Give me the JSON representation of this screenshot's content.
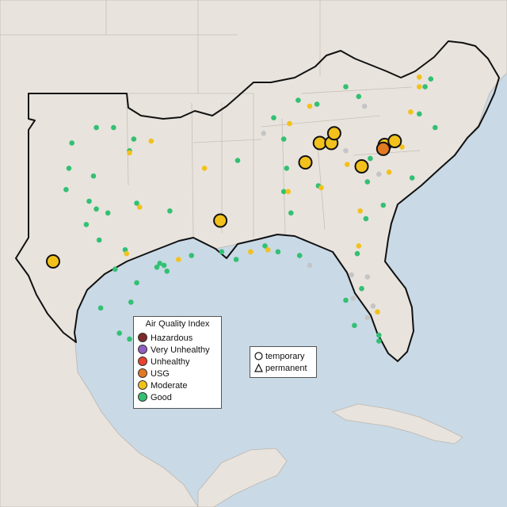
{
  "legend": {
    "title": "Air Quality Index",
    "categories": [
      {
        "label": "Hazardous",
        "color": "#7e2a2a"
      },
      {
        "label": "Very Unhealthy",
        "color": "#8f5fbf"
      },
      {
        "label": "Unhealthy",
        "color": "#e8432e"
      },
      {
        "label": "USG",
        "color": "#e27a24"
      },
      {
        "label": "Moderate",
        "color": "#f2c11b"
      },
      {
        "label": "Good",
        "color": "#33c073"
      }
    ]
  },
  "monitor_types": [
    {
      "label": "temporary",
      "shape": "circle"
    },
    {
      "label": "permanent",
      "shape": "triangle"
    }
  ],
  "colors": {
    "water": "#c9d9e6",
    "land": "#e8e3dd",
    "no_data": "#c5c5c5"
  },
  "monitors": [
    {
      "aqi": "Moderate",
      "lat": 29.9,
      "lon": -102.8,
      "size": "large"
    },
    {
      "aqi": "Moderate",
      "lat": 32.0,
      "lon": -91.2,
      "size": "large"
    },
    {
      "aqi": "Moderate",
      "lat": 35.0,
      "lon": -85.3,
      "size": "large"
    },
    {
      "aqi": "Moderate",
      "lat": 36.0,
      "lon": -84.3,
      "size": "large"
    },
    {
      "aqi": "Moderate",
      "lat": 36.0,
      "lon": -83.5,
      "size": "large"
    },
    {
      "aqi": "Moderate",
      "lat": 36.5,
      "lon": -83.3,
      "size": "large"
    },
    {
      "aqi": "Moderate",
      "lat": 34.8,
      "lon": -81.4,
      "size": "large"
    },
    {
      "aqi": "Moderate",
      "lat": 35.9,
      "lon": -79.8,
      "size": "large"
    },
    {
      "aqi": "Moderate",
      "lat": 36.1,
      "lon": -79.1,
      "size": "large"
    },
    {
      "aqi": "USG",
      "lat": 35.7,
      "lon": -79.9,
      "size": "large"
    },
    {
      "aqi": "Good",
      "lat": 36.0,
      "lon": -101.5
    },
    {
      "aqi": "Good",
      "lat": 36.8,
      "lon": -99.8
    },
    {
      "aqi": "Good",
      "lat": 36.8,
      "lon": -98.6
    },
    {
      "aqi": "Good",
      "lat": 36.2,
      "lon": -97.2
    },
    {
      "aqi": "Good",
      "lat": 35.6,
      "lon": -97.5
    },
    {
      "aqi": "Good",
      "lat": 34.7,
      "lon": -101.7
    },
    {
      "aqi": "Good",
      "lat": 34.3,
      "lon": -100.0
    },
    {
      "aqi": "Good",
      "lat": 33.6,
      "lon": -101.9
    },
    {
      "aqi": "Good",
      "lat": 33.0,
      "lon": -100.3
    },
    {
      "aqi": "Good",
      "lat": 32.6,
      "lon": -99.8
    },
    {
      "aqi": "Good",
      "lat": 32.4,
      "lon": -99.0
    },
    {
      "aqi": "Good",
      "lat": 31.8,
      "lon": -100.5
    },
    {
      "aqi": "Good",
      "lat": 31.0,
      "lon": -99.6
    },
    {
      "aqi": "Good",
      "lat": 30.5,
      "lon": -97.8
    },
    {
      "aqi": "Good",
      "lat": 29.5,
      "lon": -98.5
    },
    {
      "aqi": "Good",
      "lat": 29.8,
      "lon": -95.4
    },
    {
      "aqi": "Good",
      "lat": 29.7,
      "lon": -95.1
    },
    {
      "aqi": "Good",
      "lat": 29.6,
      "lon": -95.6
    },
    {
      "aqi": "Good",
      "lat": 29.4,
      "lon": -94.9
    },
    {
      "aqi": "Good",
      "lat": 28.8,
      "lon": -97.0
    },
    {
      "aqi": "Good",
      "lat": 27.8,
      "lon": -97.4
    },
    {
      "aqi": "Good",
      "lat": 27.5,
      "lon": -99.5
    },
    {
      "aqi": "Good",
      "lat": 26.2,
      "lon": -98.2
    },
    {
      "aqi": "Good",
      "lat": 25.9,
      "lon": -97.5
    },
    {
      "aqi": "Good",
      "lat": 32.9,
      "lon": -97.0
    },
    {
      "aqi": "Good",
      "lat": 32.5,
      "lon": -94.7
    },
    {
      "aqi": "Good",
      "lat": 30.2,
      "lon": -93.2
    },
    {
      "aqi": "Good",
      "lat": 30.4,
      "lon": -91.1
    },
    {
      "aqi": "Good",
      "lat": 30.0,
      "lon": -90.1
    },
    {
      "aqi": "Good",
      "lat": 30.7,
      "lon": -88.1
    },
    {
      "aqi": "Good",
      "lat": 30.4,
      "lon": -87.2
    },
    {
      "aqi": "Good",
      "lat": 30.2,
      "lon": -85.7
    },
    {
      "aqi": "Good",
      "lat": 33.5,
      "lon": -86.8
    },
    {
      "aqi": "Good",
      "lat": 32.4,
      "lon": -86.3
    },
    {
      "aqi": "Good",
      "lat": 34.7,
      "lon": -86.6
    },
    {
      "aqi": "Good",
      "lat": 33.8,
      "lon": -84.4
    },
    {
      "aqi": "Good",
      "lat": 32.1,
      "lon": -81.1
    },
    {
      "aqi": "Good",
      "lat": 32.8,
      "lon": -79.9
    },
    {
      "aqi": "Good",
      "lat": 30.3,
      "lon": -81.7
    },
    {
      "aqi": "Good",
      "lat": 28.5,
      "lon": -81.4
    },
    {
      "aqi": "Good",
      "lat": 27.9,
      "lon": -82.5
    },
    {
      "aqi": "Good",
      "lat": 26.6,
      "lon": -81.9
    },
    {
      "aqi": "Good",
      "lat": 26.1,
      "lon": -80.2
    },
    {
      "aqi": "Good",
      "lat": 25.8,
      "lon": -80.2
    },
    {
      "aqi": "Good",
      "lat": 36.2,
      "lon": -86.8
    },
    {
      "aqi": "Good",
      "lat": 35.1,
      "lon": -90.0
    },
    {
      "aqi": "Good",
      "lat": 37.3,
      "lon": -87.5
    },
    {
      "aqi": "Good",
      "lat": 38.2,
      "lon": -85.8
    },
    {
      "aqi": "Good",
      "lat": 38.0,
      "lon": -84.5
    },
    {
      "aqi": "Good",
      "lat": 38.9,
      "lon": -82.5
    },
    {
      "aqi": "Good",
      "lat": 38.4,
      "lon": -81.6
    },
    {
      "aqi": "Good",
      "lat": 37.5,
      "lon": -77.4
    },
    {
      "aqi": "Good",
      "lat": 36.8,
      "lon": -76.3
    },
    {
      "aqi": "Good",
      "lat": 39.3,
      "lon": -76.6
    },
    {
      "aqi": "Good",
      "lat": 38.9,
      "lon": -77.0
    },
    {
      "aqi": "Good",
      "lat": 35.2,
      "lon": -80.8
    },
    {
      "aqi": "Good",
      "lat": 34.2,
      "lon": -77.9
    },
    {
      "aqi": "Good",
      "lat": 34.0,
      "lon": -81.0
    },
    {
      "aqi": "Moderate",
      "lat": 35.5,
      "lon": -97.5
    },
    {
      "aqi": "Moderate",
      "lat": 36.1,
      "lon": -96.0
    },
    {
      "aqi": "Moderate",
      "lat": 30.3,
      "lon": -97.7
    },
    {
      "aqi": "Moderate",
      "lat": 32.7,
      "lon": -96.8
    },
    {
      "aqi": "Moderate",
      "lat": 30.0,
      "lon": -94.1
    },
    {
      "aqi": "Moderate",
      "lat": 34.7,
      "lon": -92.3
    },
    {
      "aqi": "Moderate",
      "lat": 30.4,
      "lon": -89.1
    },
    {
      "aqi": "Moderate",
      "lat": 30.5,
      "lon": -87.9
    },
    {
      "aqi": "Moderate",
      "lat": 33.5,
      "lon": -86.5
    },
    {
      "aqi": "Moderate",
      "lat": 33.7,
      "lon": -84.2
    },
    {
      "aqi": "Moderate",
      "lat": 35.1,
      "lon": -85.1
    },
    {
      "aqi": "Moderate",
      "lat": 35.9,
      "lon": -84.0
    },
    {
      "aqi": "Moderate",
      "lat": 34.9,
      "lon": -82.4
    },
    {
      "aqi": "Moderate",
      "lat": 32.5,
      "lon": -81.5
    },
    {
      "aqi": "Moderate",
      "lat": 30.7,
      "lon": -81.6
    },
    {
      "aqi": "Moderate",
      "lat": 27.3,
      "lon": -80.3
    },
    {
      "aqi": "Moderate",
      "lat": 38.9,
      "lon": -77.4
    },
    {
      "aqi": "Moderate",
      "lat": 37.6,
      "lon": -78.0
    },
    {
      "aqi": "Moderate",
      "lat": 39.4,
      "lon": -77.4
    },
    {
      "aqi": "Moderate",
      "lat": 36.0,
      "lon": -78.9
    },
    {
      "aqi": "Moderate",
      "lat": 35.8,
      "lon": -78.6
    },
    {
      "aqi": "Moderate",
      "lat": 34.5,
      "lon": -79.5
    },
    {
      "aqi": "Moderate",
      "lat": 37.9,
      "lon": -85.0
    },
    {
      "aqi": "Moderate",
      "lat": 37.0,
      "lon": -86.4
    },
    {
      "aqi": "none",
      "lat": 35.6,
      "lon": -82.5
    },
    {
      "aqi": "none",
      "lat": 34.4,
      "lon": -80.2
    },
    {
      "aqi": "none",
      "lat": 29.2,
      "lon": -82.1
    },
    {
      "aqi": "none",
      "lat": 28.0,
      "lon": -82.0
    },
    {
      "aqi": "none",
      "lat": 27.0,
      "lon": -81.0
    },
    {
      "aqi": "none",
      "lat": 29.7,
      "lon": -85.0
    },
    {
      "aqi": "none",
      "lat": 36.5,
      "lon": -88.2
    },
    {
      "aqi": "none",
      "lat": 37.9,
      "lon": -81.2
    },
    {
      "aqi": "none",
      "lat": 29.1,
      "lon": -81.0
    },
    {
      "aqi": "none",
      "lat": 27.6,
      "lon": -80.6
    }
  ]
}
